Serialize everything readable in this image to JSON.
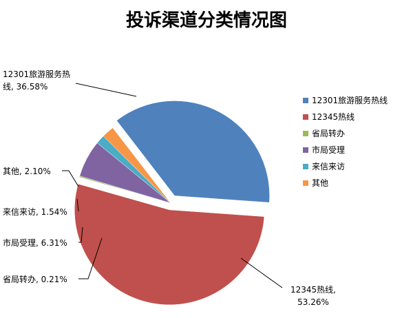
{
  "chart_data": {
    "type": "pie",
    "title": "投诉渠道分类情况图",
    "legend_position": "right",
    "slices": [
      {
        "name": "12301旅游服务热线",
        "value": 36.58,
        "color": "#4F81BD",
        "label_lines": [
          "12301旅游服务热",
          "线, 36.58%"
        ]
      },
      {
        "name": "12345热线",
        "value": 53.26,
        "color": "#C0504D",
        "label_lines": [
          "12345热线,",
          "53.26%"
        ]
      },
      {
        "name": "省局转办",
        "value": 0.21,
        "color": "#9BBB59",
        "label_lines": [
          "省局转办, 0.21%"
        ]
      },
      {
        "name": "市局受理",
        "value": 6.31,
        "color": "#8064A2",
        "label_lines": [
          "市局受理, 6.31%"
        ]
      },
      {
        "name": "来信来访",
        "value": 1.54,
        "color": "#4BACC6",
        "label_lines": [
          "来信来访, 1.54%"
        ]
      },
      {
        "name": "其他",
        "value": 2.1,
        "color": "#F79646",
        "label_lines": [
          "其他, 2.10%"
        ]
      }
    ]
  }
}
